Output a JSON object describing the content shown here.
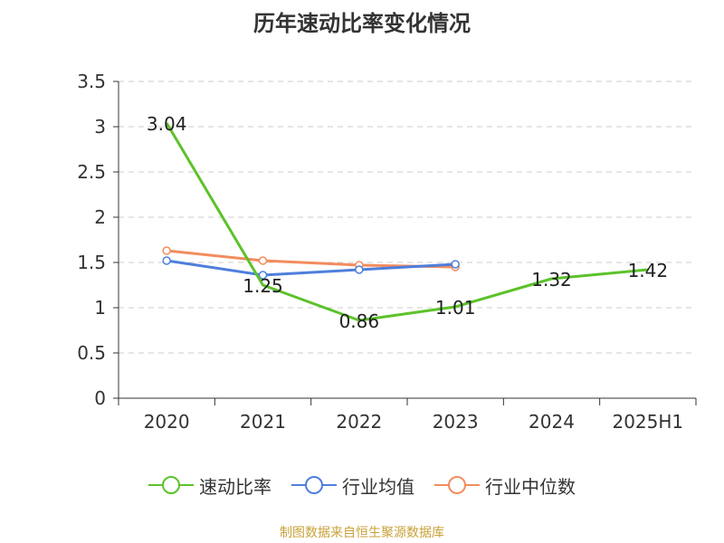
{
  "chart_data": {
    "type": "line",
    "title": "历年速动比率变化情况",
    "categories": [
      "2020",
      "2021",
      "2022",
      "2023",
      "2024",
      "2025H1"
    ],
    "ylim": [
      0,
      3.5
    ],
    "yticks": [
      "0",
      "0.5",
      "1",
      "1.5",
      "2",
      "2.5",
      "3",
      "3.5"
    ],
    "grid": true,
    "legend_position": "bottom",
    "series": [
      {
        "name": "速动比率",
        "color": "#5cc22a",
        "values": [
          3.04,
          1.25,
          0.86,
          1.01,
          1.32,
          1.42
        ],
        "labels": [
          "3.04",
          "1.25",
          "0.86",
          "1.01",
          "1.32",
          "1.42"
        ]
      },
      {
        "name": "行业均值",
        "color": "#4e7fdc",
        "values": [
          1.52,
          1.36,
          1.42,
          1.48,
          null,
          null
        ]
      },
      {
        "name": "行业中位数",
        "color": "#f28c5e",
        "values": [
          1.63,
          1.52,
          1.47,
          1.45,
          null,
          null
        ]
      }
    ]
  },
  "source": "制图数据来自恒生聚源数据库"
}
